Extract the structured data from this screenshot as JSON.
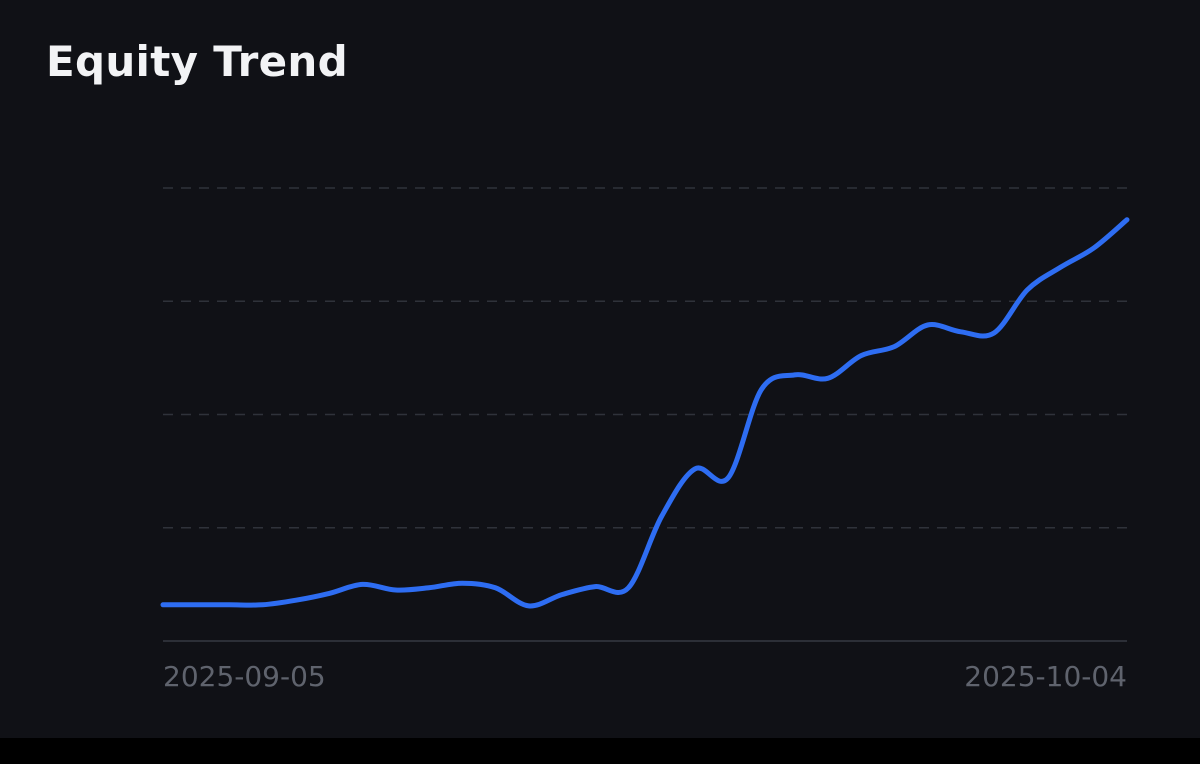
{
  "title": "Equity Trend",
  "colors": {
    "background": "#101116",
    "line": "#2e6df2",
    "grid": "#2f323a",
    "axis": "#2c2f37",
    "title": "#f2f3f5",
    "tick_label": "#5f636d"
  },
  "chart_data": {
    "type": "line",
    "title": "Equity Trend",
    "xlabel": "",
    "ylabel": "",
    "x_tick_labels": [
      "2025-09-05",
      "2025-10-04"
    ],
    "x_range": [
      "2025-09-05",
      "2025-10-04"
    ],
    "y_range": [
      0,
      400
    ],
    "y_tick_labels_visible": false,
    "grid": "horizontal dashed",
    "legend": "none",
    "series": [
      {
        "x": [
          "2025-09-05",
          "2025-09-06",
          "2025-09-07",
          "2025-09-08",
          "2025-09-09",
          "2025-09-10",
          "2025-09-11",
          "2025-09-12",
          "2025-09-13",
          "2025-09-14",
          "2025-09-15",
          "2025-09-16",
          "2025-09-17",
          "2025-09-18",
          "2025-09-19",
          "2025-09-20",
          "2025-09-21",
          "2025-09-22",
          "2025-09-23",
          "2025-09-24",
          "2025-09-25",
          "2025-09-26",
          "2025-09-27",
          "2025-09-28",
          "2025-09-29",
          "2025-09-30",
          "2025-10-01",
          "2025-10-02",
          "2025-10-03",
          "2025-10-04"
        ],
        "values": [
          32,
          32,
          32,
          32,
          36,
          42,
          50,
          45,
          47,
          51,
          47,
          31,
          41,
          48,
          47,
          110,
          152,
          144,
          222,
          235,
          232,
          252,
          260,
          279,
          273,
          272,
          310,
          330,
          347,
          372
        ]
      }
    ]
  }
}
